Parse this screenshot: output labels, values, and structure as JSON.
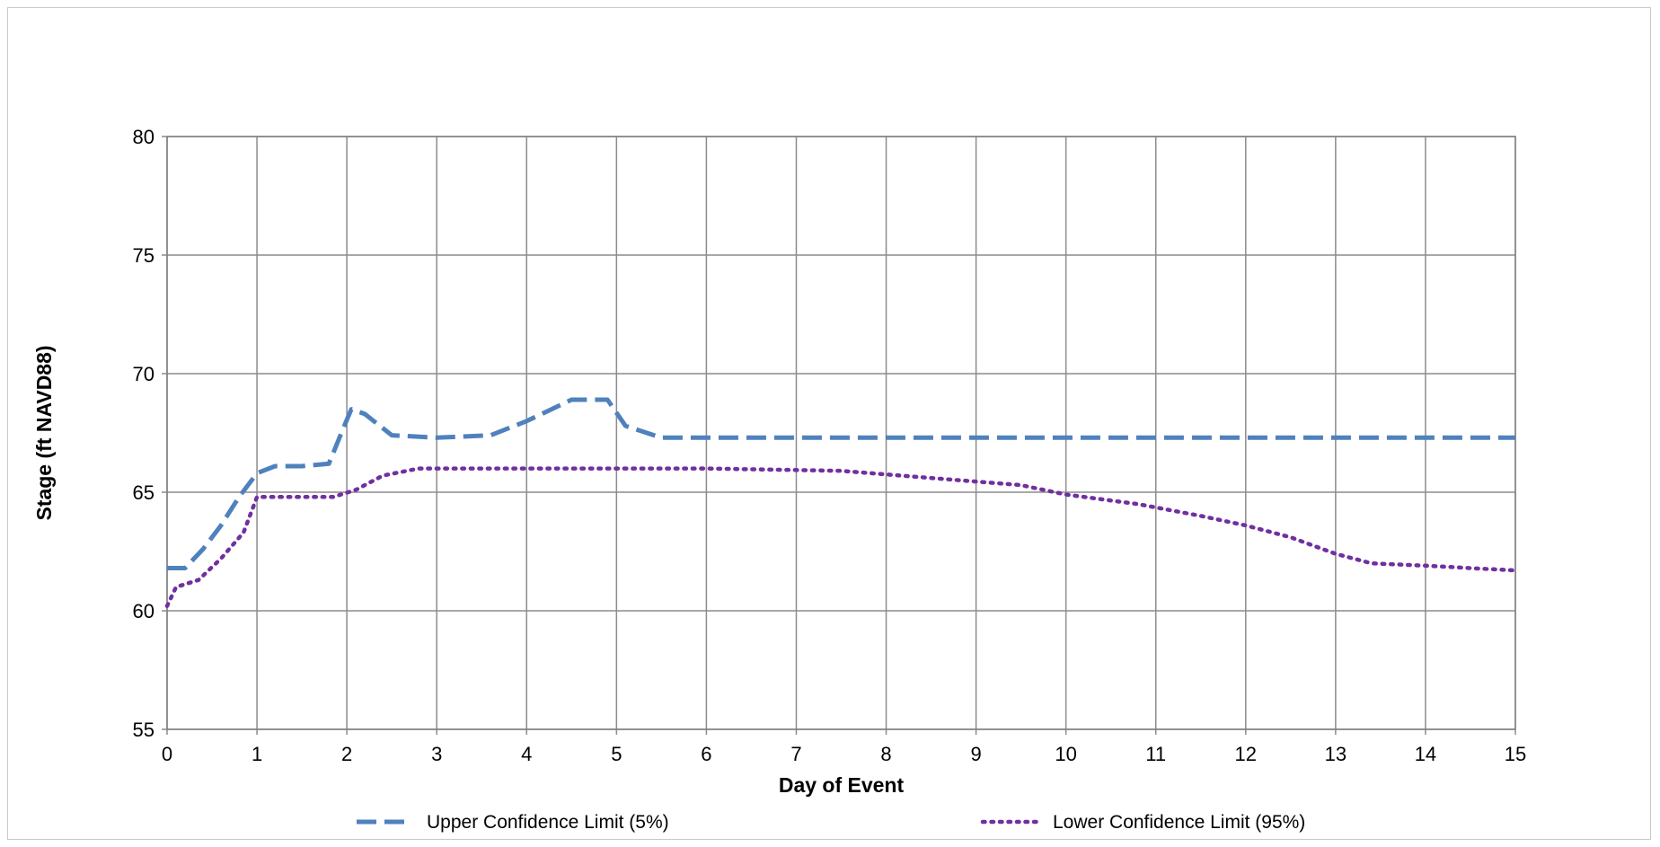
{
  "chart_data": {
    "type": "line",
    "title": "",
    "xlabel": "Day of Event",
    "ylabel": "Stage (ft NAVD88)",
    "xlim": [
      0,
      15
    ],
    "ylim": [
      55,
      80
    ],
    "x_ticks": [
      0,
      1,
      2,
      3,
      4,
      5,
      6,
      7,
      8,
      9,
      10,
      11,
      12,
      13,
      14,
      15
    ],
    "y_ticks": [
      55,
      60,
      65,
      70,
      75,
      80
    ],
    "grid": true,
    "legend_position": "bottom",
    "series": [
      {
        "name": "Upper Confidence Limit (5%)",
        "color": "#4f81bd",
        "style": "dashed",
        "points": [
          [
            0.0,
            61.8
          ],
          [
            0.2,
            61.8
          ],
          [
            0.4,
            62.6
          ],
          [
            0.6,
            63.6
          ],
          [
            0.8,
            64.8
          ],
          [
            1.0,
            65.8
          ],
          [
            1.2,
            66.1
          ],
          [
            1.5,
            66.1
          ],
          [
            1.8,
            66.2
          ],
          [
            1.95,
            67.6
          ],
          [
            2.05,
            68.5
          ],
          [
            2.2,
            68.3
          ],
          [
            2.5,
            67.4
          ],
          [
            3.0,
            67.3
          ],
          [
            3.6,
            67.4
          ],
          [
            4.0,
            68.0
          ],
          [
            4.5,
            68.9
          ],
          [
            4.9,
            68.9
          ],
          [
            5.1,
            67.8
          ],
          [
            5.5,
            67.3
          ],
          [
            7.0,
            67.3
          ],
          [
            10.0,
            67.3
          ],
          [
            13.0,
            67.3
          ],
          [
            15.0,
            67.3
          ]
        ]
      },
      {
        "name": "Lower Confidence Limit (95%)",
        "color": "#7030a0",
        "style": "dotted",
        "points": [
          [
            0.0,
            60.2
          ],
          [
            0.1,
            61.0
          ],
          [
            0.35,
            61.3
          ],
          [
            0.6,
            62.2
          ],
          [
            0.85,
            63.3
          ],
          [
            1.0,
            64.8
          ],
          [
            1.5,
            64.8
          ],
          [
            1.85,
            64.8
          ],
          [
            2.1,
            65.1
          ],
          [
            2.4,
            65.7
          ],
          [
            2.8,
            66.0
          ],
          [
            4.0,
            66.0
          ],
          [
            6.0,
            66.0
          ],
          [
            7.5,
            65.9
          ],
          [
            8.5,
            65.6
          ],
          [
            9.5,
            65.3
          ],
          [
            10.0,
            64.9
          ],
          [
            10.8,
            64.5
          ],
          [
            11.5,
            64.0
          ],
          [
            12.0,
            63.6
          ],
          [
            12.5,
            63.1
          ],
          [
            13.0,
            62.4
          ],
          [
            13.4,
            62.0
          ],
          [
            14.0,
            61.9
          ],
          [
            14.5,
            61.8
          ],
          [
            15.0,
            61.7
          ]
        ]
      }
    ]
  }
}
